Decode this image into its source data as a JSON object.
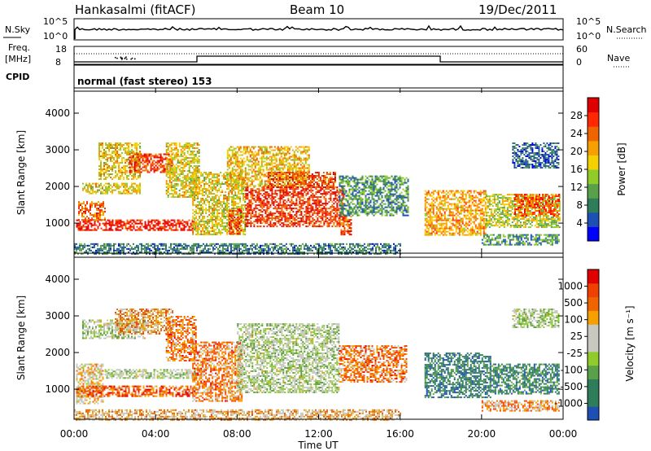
{
  "header": {
    "station": "Hankasalmi (fitACF)",
    "beam": "Beam 10",
    "date": "19/Dec/2011"
  },
  "strip": {
    "nsky_label": "N.Sky",
    "nsearch_label": "N.Search",
    "freq_label_1": "Freq.",
    "freq_label_2": "[MHz]",
    "nave_label": "Nave",
    "cpid_label": "CPID",
    "cpid_text": "normal (fast stereo) 153",
    "ticks": {
      "noise_top": "10^5",
      "noise_bottom": "10^0",
      "freq_top": "18",
      "freq_bottom": "8",
      "nave_top": "60",
      "nave_bottom": "0"
    }
  },
  "colors": {
    "noise_line": "#000000",
    "no_data": "#ffffff",
    "frame": "#000000"
  },
  "chart_data": [
    {
      "type": "heatmap",
      "name": "power",
      "ylabel": "Slant Range [km]",
      "xlabel": "",
      "x_ticks": [
        "00:00",
        "04:00",
        "08:00",
        "12:00",
        "16:00",
        "20:00",
        "00:00"
      ],
      "x_range_hours": [
        0,
        24
      ],
      "y_ticks": [
        1000,
        2000,
        3000,
        4000
      ],
      "ylim": [
        180,
        4600
      ],
      "colorbar": {
        "label": "Power [dB]",
        "ticks": [
          "4",
          "8",
          "12",
          "16",
          "20",
          "24",
          "28"
        ],
        "colors": [
          "#0000ff",
          "#1e4fb4",
          "#2e7d5a",
          "#5aa04a",
          "#8fcc2a",
          "#f5d000",
          "#f5a000",
          "#f06400",
          "#ff2800",
          "#e00000"
        ]
      },
      "regions": [
        {
          "t0": 0.1,
          "t1": 6.0,
          "r0": 800,
          "r1": 1100,
          "level": 0.9
        },
        {
          "t0": 0.2,
          "t1": 1.5,
          "r0": 1100,
          "r1": 1600,
          "level": 0.75
        },
        {
          "t0": 0.4,
          "t1": 3.2,
          "r0": 1800,
          "r1": 2100,
          "level": 0.55
        },
        {
          "t0": 1.2,
          "t1": 3.2,
          "r0": 2200,
          "r1": 3200,
          "level": 0.55
        },
        {
          "t0": 2.7,
          "t1": 4.8,
          "r0": 2400,
          "r1": 2900,
          "level": 0.85
        },
        {
          "t0": 4.5,
          "t1": 6.1,
          "r0": 1700,
          "r1": 3200,
          "level": 0.55
        },
        {
          "t0": 5.8,
          "t1": 8.4,
          "r0": 700,
          "r1": 2400,
          "level": 0.55
        },
        {
          "t0": 7.6,
          "t1": 8.2,
          "r0": 700,
          "r1": 1400,
          "level": 0.85
        },
        {
          "t0": 7.5,
          "t1": 11.5,
          "r0": 2000,
          "r1": 3100,
          "level": 0.6
        },
        {
          "t0": 8.4,
          "t1": 13.2,
          "r0": 900,
          "r1": 2000,
          "level": 0.85
        },
        {
          "t0": 9.5,
          "t1": 12.8,
          "r0": 2000,
          "r1": 2400,
          "level": 0.8
        },
        {
          "t0": 13.0,
          "t1": 13.6,
          "r0": 700,
          "r1": 1200,
          "level": 0.8
        },
        {
          "t0": 13.0,
          "t1": 16.4,
          "r0": 1200,
          "r1": 2300,
          "level": 0.3
        },
        {
          "t0": 17.2,
          "t1": 20.2,
          "r0": 700,
          "r1": 1900,
          "level": 0.65
        },
        {
          "t0": 20.2,
          "t1": 23.8,
          "r0": 900,
          "r1": 1800,
          "level": 0.5
        },
        {
          "t0": 21.6,
          "t1": 23.8,
          "r0": 1200,
          "r1": 1800,
          "level": 0.8
        },
        {
          "t0": 20.0,
          "t1": 23.8,
          "r0": 400,
          "r1": 700,
          "level": 0.3
        },
        {
          "t0": 21.5,
          "t1": 23.8,
          "r0": 2500,
          "r1": 3200,
          "level": 0.2
        },
        {
          "t0": 0.0,
          "t1": 16.0,
          "r0": 180,
          "r1": 450,
          "level": 0.25
        }
      ]
    },
    {
      "type": "heatmap",
      "name": "velocity",
      "ylabel": "Slant Range [km]",
      "xlabel": "Time UT",
      "x_ticks": [
        "00:00",
        "04:00",
        "08:00",
        "12:00",
        "16:00",
        "20:00",
        "00:00"
      ],
      "x_range_hours": [
        0,
        24
      ],
      "y_ticks": [
        1000,
        2000,
        3000,
        4000
      ],
      "ylim": [
        180,
        4600
      ],
      "colorbar": {
        "label": "Velocity [m s⁻¹]",
        "ticks": [
          "1000",
          "500",
          "100",
          "25",
          "-25",
          "-100",
          "-500",
          "-1000"
        ],
        "colors": [
          "#1e4fb4",
          "#2e7d5a",
          "#2e7d5a",
          "#5aa04a",
          "#8fcc2a",
          "#c8c8c0",
          "#c8c8c0",
          "#f5a000",
          "#f06400",
          "#f04000",
          "#e00000"
        ]
      },
      "regions": [
        {
          "t0": 0.1,
          "t1": 1.4,
          "r0": 600,
          "r1": 1700,
          "level": 0.6
        },
        {
          "t0": 0.1,
          "t1": 6.0,
          "r0": 800,
          "r1": 1100,
          "level": 0.8
        },
        {
          "t0": 1.5,
          "t1": 6.0,
          "r0": 1300,
          "r1": 1550,
          "level": 0.47
        },
        {
          "t0": 0.4,
          "t1": 3.5,
          "r0": 2400,
          "r1": 2900,
          "level": 0.47
        },
        {
          "t0": 2.0,
          "t1": 4.8,
          "r0": 2500,
          "r1": 3200,
          "level": 0.7
        },
        {
          "t0": 4.5,
          "t1": 6.0,
          "r0": 1800,
          "r1": 3000,
          "level": 0.75
        },
        {
          "t0": 5.8,
          "t1": 8.2,
          "r0": 700,
          "r1": 2300,
          "level": 0.75
        },
        {
          "t0": 8.0,
          "t1": 13.0,
          "r0": 900,
          "r1": 2800,
          "level": 0.47
        },
        {
          "t0": 13.0,
          "t1": 16.3,
          "r0": 1200,
          "r1": 2200,
          "level": 0.75
        },
        {
          "t0": 17.2,
          "t1": 20.4,
          "r0": 800,
          "r1": 2000,
          "level": 0.18
        },
        {
          "t0": 20.4,
          "t1": 23.8,
          "r0": 900,
          "r1": 1700,
          "level": 0.2
        },
        {
          "t0": 20.0,
          "t1": 23.8,
          "r0": 400,
          "r1": 700,
          "level": 0.7
        },
        {
          "t0": 21.5,
          "t1": 23.8,
          "r0": 2700,
          "r1": 3200,
          "level": 0.47
        },
        {
          "t0": 0.0,
          "t1": 16.0,
          "r0": 180,
          "r1": 450,
          "level": 0.65
        }
      ]
    }
  ]
}
